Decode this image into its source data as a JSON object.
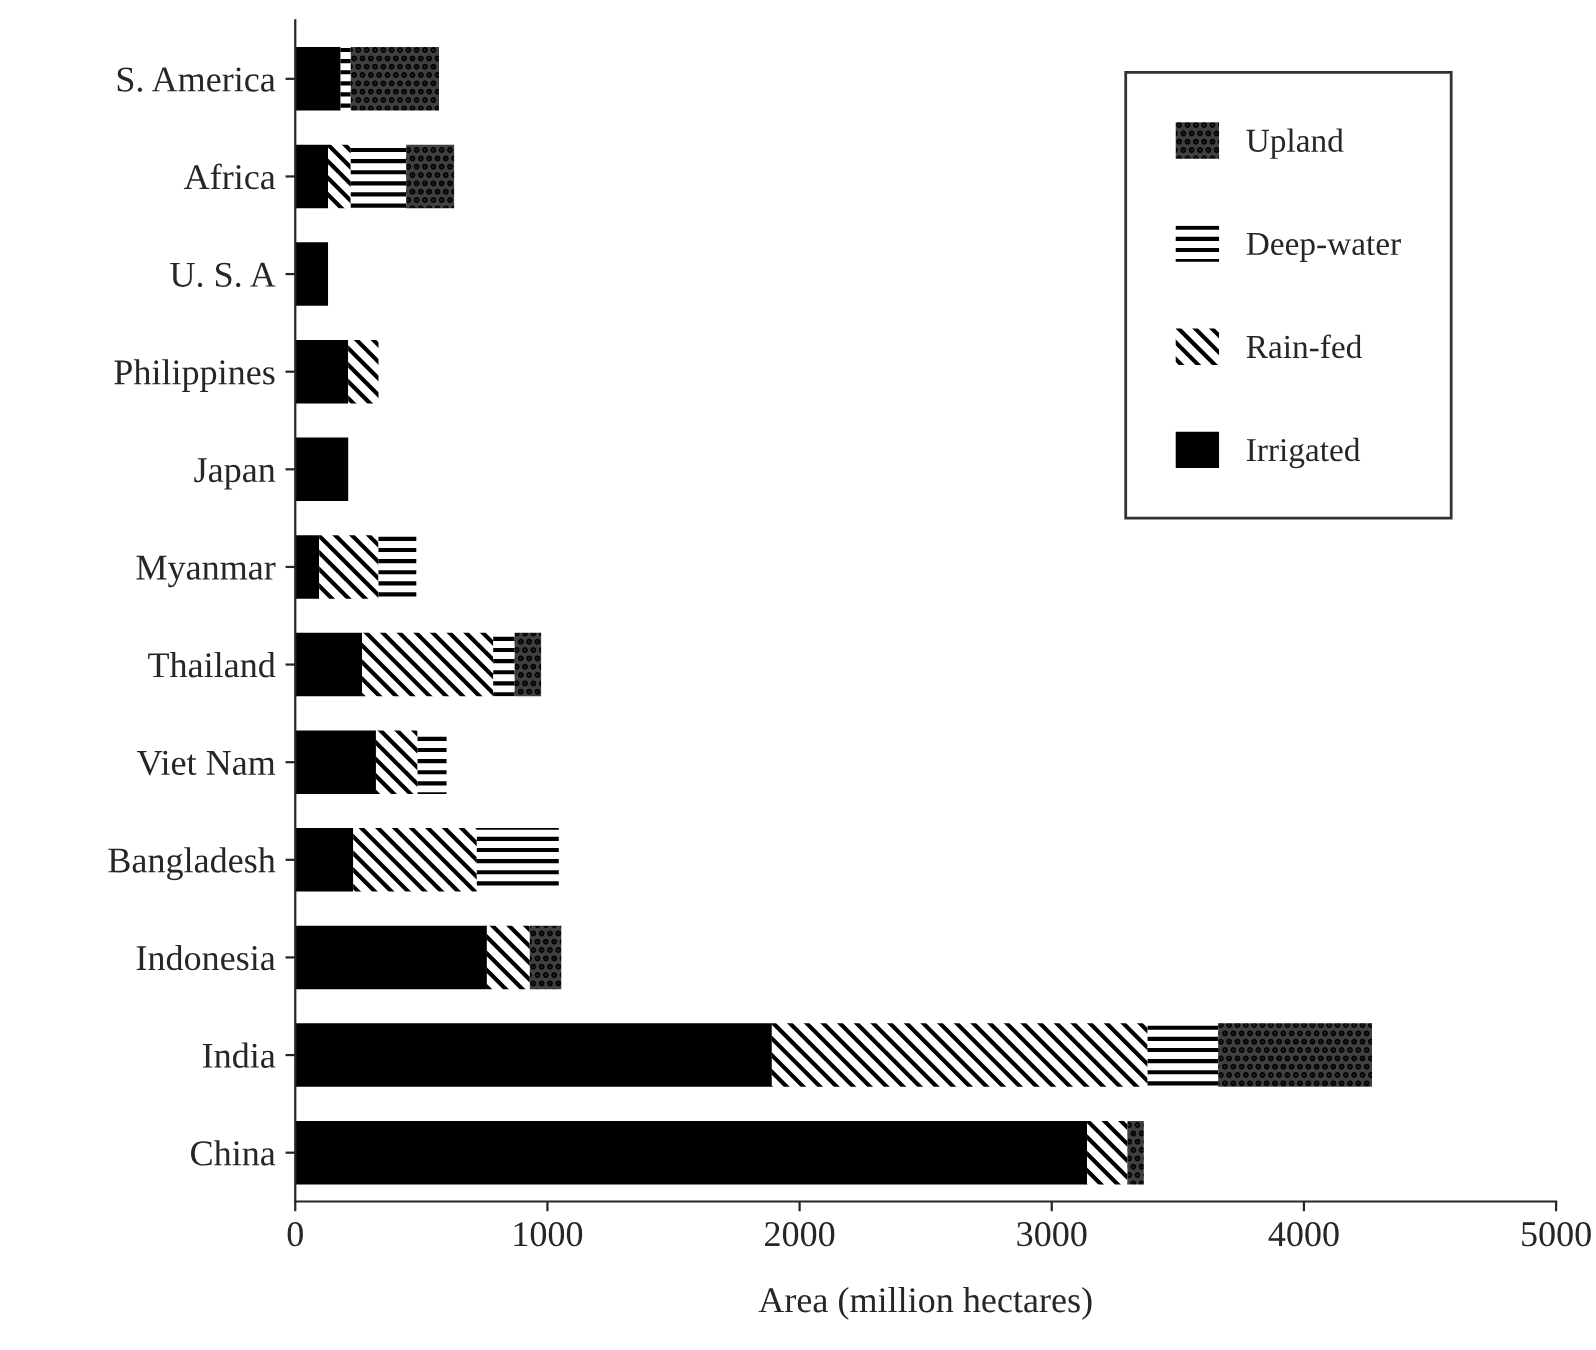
{
  "chart_data": {
    "type": "bar",
    "orientation": "horizontal",
    "stacked": true,
    "xlabel": "Area (million hectares)",
    "categories": [
      "S. America",
      "Africa",
      "U. S. A",
      "Philippines",
      "Japan",
      "Myanmar",
      "Thailand",
      "Viet Nam",
      "Bangladesh",
      "Indonesia",
      "India",
      "China"
    ],
    "series": [
      {
        "name": "Irrigated",
        "color": "#000000",
        "values": [
          180,
          130,
          130,
          210,
          210,
          95,
          265,
          320,
          230,
          760,
          1890,
          3140
        ]
      },
      {
        "name": "Rain-fed",
        "color": "#ffffff",
        "values": [
          null,
          90,
          null,
          120,
          null,
          235,
          520,
          165,
          490,
          170,
          1490,
          160
        ]
      },
      {
        "name": "Deep-water",
        "color": "#ffffff",
        "values": [
          40,
          220,
          null,
          null,
          null,
          150,
          85,
          115,
          325,
          null,
          280,
          null
        ]
      },
      {
        "name": "Upland",
        "color": "#404040",
        "values": [
          350,
          190,
          null,
          null,
          null,
          null,
          105,
          null,
          null,
          125,
          610,
          65
        ]
      }
    ],
    "xlim": [
      0,
      5000
    ],
    "xticks": [
      0,
      1000,
      2000,
      3000,
      4000,
      5000
    ],
    "grid": false,
    "legend": "top right"
  }
}
